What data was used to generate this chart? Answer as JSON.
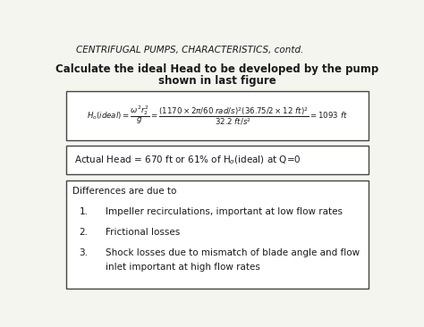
{
  "title": "CENTRIFUGAL PUMPS, CHARACTERISTICS, contd.",
  "subtitle1": "Calculate the ideal Head to be developed by the pump",
  "subtitle2": "shown in last figure",
  "eq_text": "$H_o(ideal) = \\dfrac{\\omega^2 r_2^2}{g} = \\dfrac{\\left(1170\\times 2\\pi/60\\ \\mathrm{rad/s}\\right)^2\\left(36.75/2\\times12\\ \\mathrm{ft}\\right)^2}{32.2\\ \\mathrm{ft/s}^2} = 1093\\ \\mathrm{ft}$",
  "actual_head": "Actual Head = 670 ft or 61% of H$_o$(ideal) at Q=0",
  "diff_title": "Differences are due to",
  "diff_nums": [
    "1.",
    "2.",
    "3."
  ],
  "diff_items": [
    "Impeller recirculations, important at low flow rates",
    "Frictional losses",
    "Shock losses due to mismatch of blade angle and flow"
  ],
  "diff_item3_line2": "inlet important at high flow rates",
  "bg_color": "#f5f5f0",
  "text_color": "#1a1a1a",
  "edge_color": "#444444",
  "title_fontsize": 7.5,
  "subtitle_fontsize": 8.5,
  "body_fontsize": 7.5,
  "eq_fontsize": 6.2
}
